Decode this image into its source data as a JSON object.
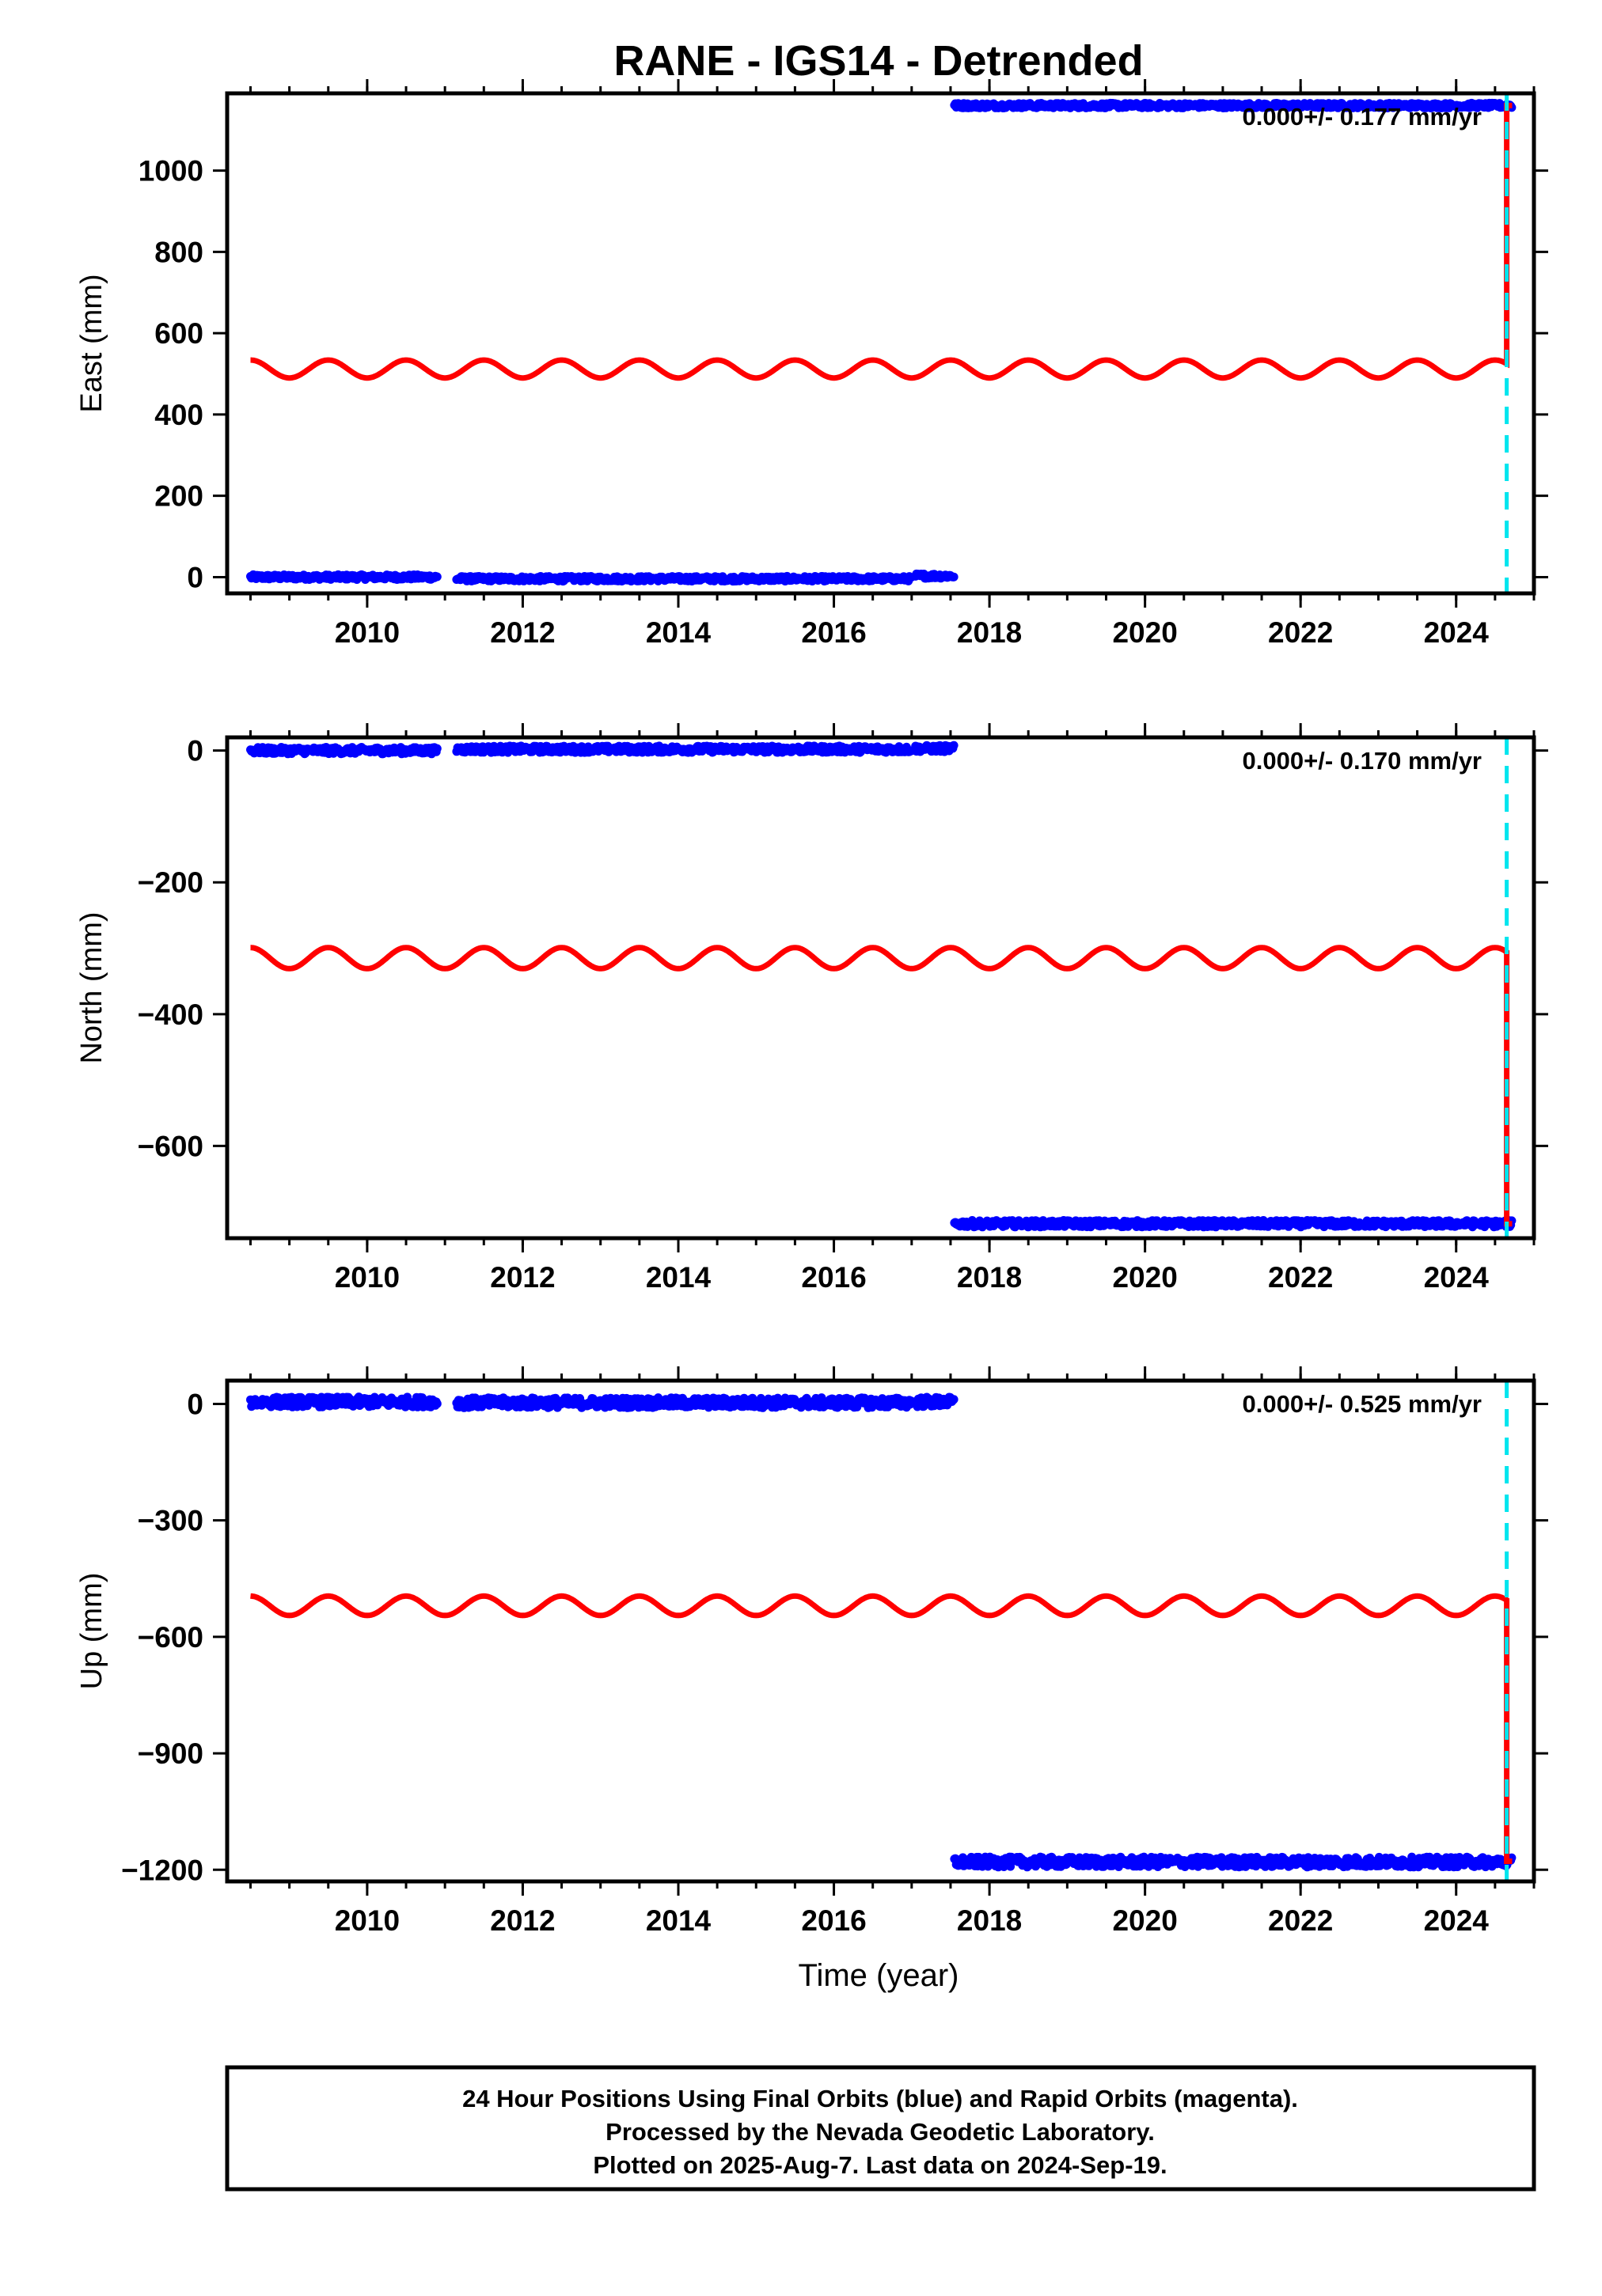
{
  "figure": {
    "title": "RANE - IGS14 - Detrended",
    "xlabel": "Time (year)",
    "footer": [
      "24 Hour Positions Using Final Orbits (blue) and Rapid Orbits (magenta).",
      "Processed by the Nevada Geodetic Laboratory.",
      "Plotted on 2025-Aug-7. Last data on 2024-Sep-19."
    ]
  },
  "colors": {
    "final_orbits": "#0000ff",
    "rapid_orbits": "#ff00ff",
    "model": "#ff0000",
    "event_line": "#00e5ee",
    "frame": "#000000"
  },
  "chart_data": [
    {
      "type": "scatter",
      "component": "east",
      "ylabel": "East (mm)",
      "xlim": [
        2008.2,
        2025.0
      ],
      "ylim": [
        -40,
        1190
      ],
      "xticks": [
        2010,
        2012,
        2014,
        2016,
        2018,
        2020,
        2022,
        2024
      ],
      "xtick_labels": [
        "2010",
        "2012",
        "2014",
        "2016",
        "2018",
        "2020",
        "2022",
        "2024"
      ],
      "yticks": [
        0,
        200,
        400,
        600,
        800,
        1000
      ],
      "ytick_labels": [
        "0",
        "200",
        "400",
        "600",
        "800",
        "1000"
      ],
      "rate_label": "0.000+/- 0.177 mm/yr",
      "event_year": 2024.65,
      "observations": {
        "segments": [
          {
            "start": 2008.5,
            "end": 2010.9,
            "level": 0
          },
          {
            "start": 2011.15,
            "end": 2017.0,
            "level": -4
          },
          {
            "start": 2017.05,
            "end": 2017.55,
            "level": 3
          },
          {
            "start": 2017.55,
            "end": 2024.72,
            "level": 1160
          }
        ],
        "noise": 6
      },
      "model": {
        "start": 2008.5,
        "end": 2024.72,
        "offset_year": 2024.65,
        "level_before": 512,
        "level_after": 1160,
        "amplitude": 22
      }
    },
    {
      "type": "scatter",
      "component": "north",
      "ylabel": "North (mm)",
      "xlim": [
        2008.2,
        2025.0
      ],
      "ylim": [
        -740,
        20
      ],
      "xticks": [
        2010,
        2012,
        2014,
        2016,
        2018,
        2020,
        2022,
        2024
      ],
      "xtick_labels": [
        "2010",
        "2012",
        "2014",
        "2016",
        "2018",
        "2020",
        "2022",
        "2024"
      ],
      "yticks": [
        0,
        -200,
        -400,
        -600
      ],
      "ytick_labels": [
        "0",
        "−200",
        "−400",
        "−600"
      ],
      "rate_label": "0.000+/- 0.170 mm/yr",
      "event_year": 2024.65,
      "observations": {
        "segments": [
          {
            "start": 2008.5,
            "end": 2010.9,
            "level": 0
          },
          {
            "start": 2011.15,
            "end": 2017.0,
            "level": 2
          },
          {
            "start": 2017.05,
            "end": 2017.55,
            "level": 3
          },
          {
            "start": 2017.55,
            "end": 2024.72,
            "level": -718
          }
        ],
        "noise": 5
      },
      "model": {
        "start": 2008.5,
        "end": 2024.72,
        "offset_year": 2024.65,
        "level_before": -315,
        "level_after": -718,
        "amplitude": 16
      }
    },
    {
      "type": "scatter",
      "component": "up",
      "ylabel": "Up (mm)",
      "xlim": [
        2008.2,
        2025.0
      ],
      "ylim": [
        -1230,
        60
      ],
      "xticks": [
        2010,
        2012,
        2014,
        2016,
        2018,
        2020,
        2022,
        2024
      ],
      "xtick_labels": [
        "2010",
        "2012",
        "2014",
        "2016",
        "2018",
        "2020",
        "2022",
        "2024"
      ],
      "yticks": [
        0,
        -300,
        -600,
        -900,
        -1200
      ],
      "ytick_labels": [
        "0",
        "−300",
        "−600",
        "−900",
        "−1200"
      ],
      "rate_label": "0.000+/- 0.525 mm/yr",
      "event_year": 2024.65,
      "observations": {
        "segments": [
          {
            "start": 2008.5,
            "end": 2010.9,
            "level": 5
          },
          {
            "start": 2011.15,
            "end": 2017.0,
            "level": 3
          },
          {
            "start": 2017.05,
            "end": 2017.55,
            "level": 5
          },
          {
            "start": 2017.55,
            "end": 2024.72,
            "level": -1180
          }
        ],
        "noise": 13
      },
      "model": {
        "start": 2008.5,
        "end": 2024.72,
        "offset_year": 2024.65,
        "level_before": -520,
        "level_after": -1178,
        "amplitude": 25
      }
    }
  ]
}
